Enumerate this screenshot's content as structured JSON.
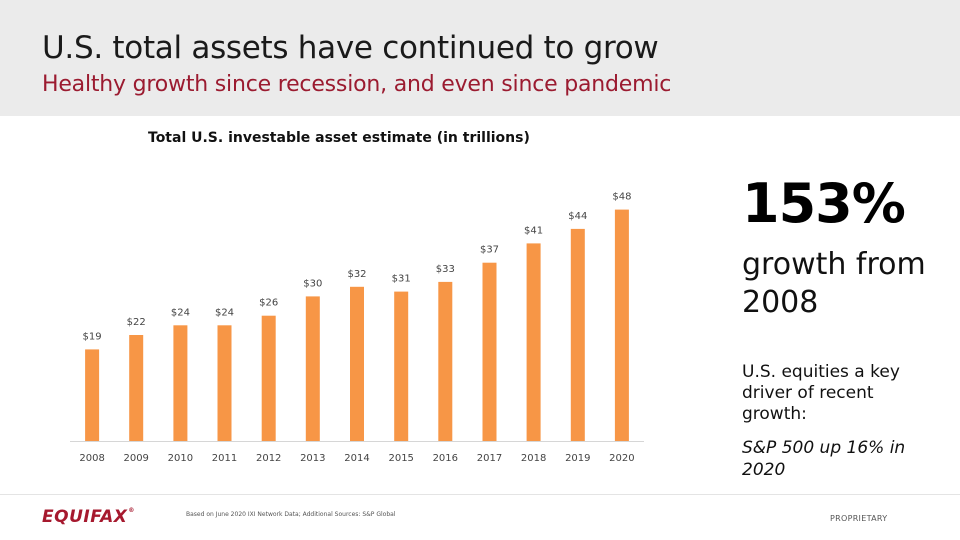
{
  "header": {
    "title": "U.S. total assets have continued to grow",
    "subtitle": "Healthy growth since recession, and even since pandemic"
  },
  "chart_data": {
    "type": "bar",
    "title": "Total U.S. investable asset estimate (in trillions)",
    "xlabel": "",
    "ylabel": "",
    "categories": [
      "2008",
      "2009",
      "2010",
      "2011",
      "2012",
      "2013",
      "2014",
      "2015",
      "2016",
      "2017",
      "2018",
      "2019",
      "2020"
    ],
    "values": [
      19,
      22,
      24,
      24,
      26,
      30,
      32,
      31,
      33,
      37,
      41,
      44,
      48
    ],
    "value_labels": [
      "$19",
      "$22",
      "$24",
      "$24",
      "$26",
      "$30",
      "$32",
      "$31",
      "$33",
      "$37",
      "$41",
      "$44",
      "$48"
    ],
    "ylim": [
      0,
      50
    ],
    "grid": false,
    "legend": "none",
    "bar_color": "#f79646"
  },
  "callout": {
    "big_stat": "153%",
    "growth_text": "growth from 2008",
    "driver_text": "U.S. equities a key driver of recent growth:",
    "sp_text": "S&P 500 up 16% in 2020"
  },
  "footer": {
    "logo": "EQUIFAX",
    "logo_mark": "®",
    "source": "Based on June 2020 IXI Network Data; Additional Sources: S&P Global",
    "proprietary": "PROPRIETARY"
  },
  "colors": {
    "accent": "#9b1b30",
    "brand": "#a6192e",
    "header_bg": "#ebebeb"
  }
}
